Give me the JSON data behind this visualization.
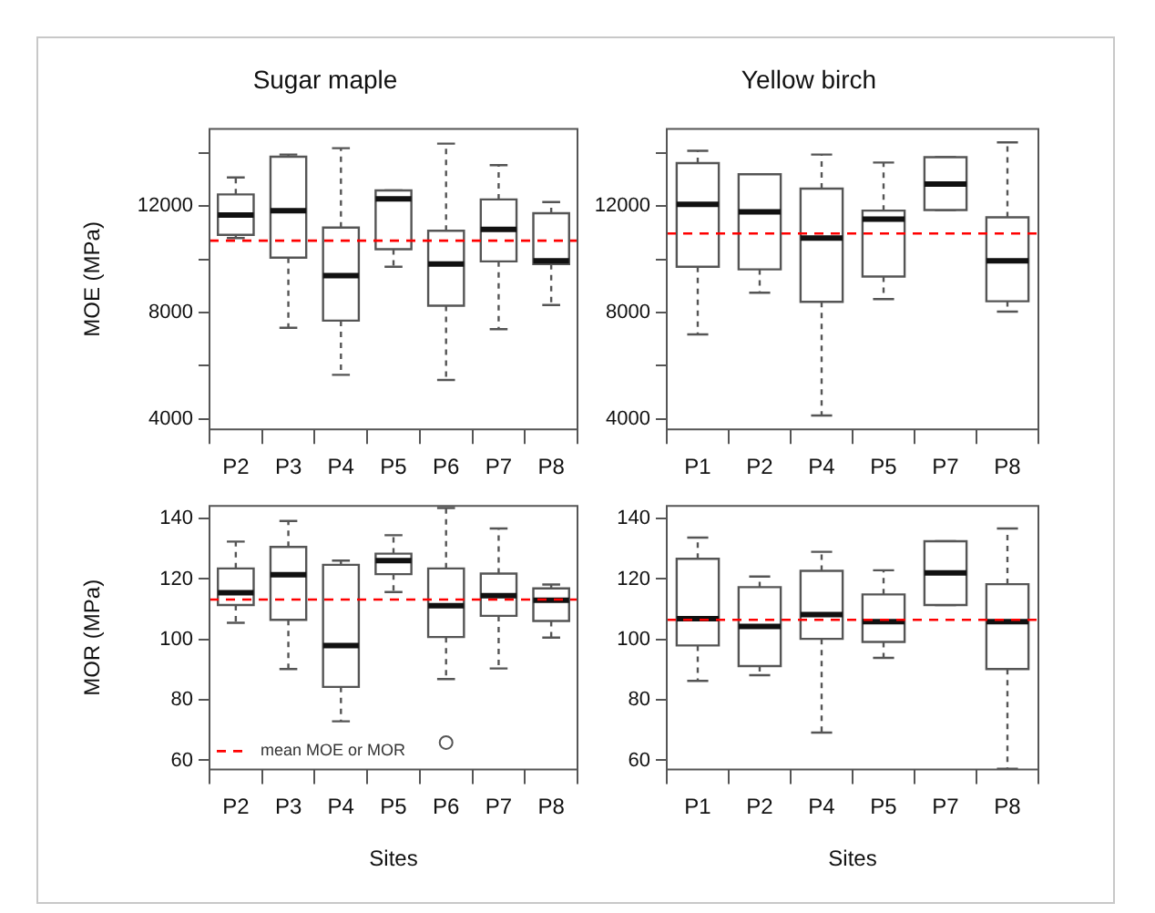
{
  "chart_data": [
    {
      "type": "box",
      "title": "Sugar maple",
      "ylabel": "MOE (MPa)",
      "categories": [
        "P2",
        "P3",
        "P4",
        "P5",
        "P6",
        "P7",
        "P8"
      ],
      "boxes": [
        {
          "low": 10800,
          "q1": 10920,
          "median": 11660,
          "q3": 12440,
          "high": 13080
        },
        {
          "low": 7420,
          "q1": 10060,
          "median": 11830,
          "q3": 13860,
          "high": 13940
        },
        {
          "low": 5650,
          "q1": 7690,
          "median": 9380,
          "q3": 11190,
          "high": 14180
        },
        {
          "low": 9720,
          "q1": 10380,
          "median": 12270,
          "q3": 12590,
          "high": 12590
        },
        {
          "low": 5460,
          "q1": 8250,
          "median": 9820,
          "q3": 11070,
          "high": 14350
        },
        {
          "low": 7370,
          "q1": 9920,
          "median": 11120,
          "q3": 12250,
          "high": 13540
        },
        {
          "low": 8280,
          "q1": 9820,
          "median": 9940,
          "q3": 11730,
          "high": 12150
        }
      ],
      "ylim": [
        3600,
        14900
      ],
      "yticks": [
        4000,
        {
          "value": 6000,
          "label": null
        },
        8000,
        {
          "value": 10000,
          "label": null
        },
        12000,
        {
          "value": 14000,
          "label": null
        }
      ],
      "ref_lines": [
        {
          "axis": "y",
          "value": 10700,
          "color": "#ff0000",
          "line_style": "dashed"
        }
      ]
    },
    {
      "type": "box",
      "title": "Yellow birch",
      "categories": [
        "P1",
        "P2",
        "P4",
        "P5",
        "P7",
        "P8"
      ],
      "boxes": [
        {
          "low": 7170,
          "q1": 9720,
          "median": 12070,
          "q3": 13620,
          "high": 14080
        },
        {
          "low": 8740,
          "q1": 9620,
          "median": 11780,
          "q3": 13200,
          "high": 13200
        },
        {
          "low": 4120,
          "q1": 8400,
          "median": 10800,
          "q3": 12660,
          "high": 13940
        },
        {
          "low": 8500,
          "q1": 9350,
          "median": 11510,
          "q3": 11830,
          "high": 13640
        },
        {
          "low": 11850,
          "q1": 11850,
          "median": 12830,
          "q3": 13840,
          "high": 13840
        },
        {
          "low": 8030,
          "q1": 8420,
          "median": 9940,
          "q3": 11580,
          "high": 14400
        }
      ],
      "ylim": [
        3600,
        14900
      ],
      "yticks": [
        4000,
        {
          "value": 6000,
          "label": null
        },
        8000,
        {
          "value": 10000,
          "label": null
        },
        12000,
        {
          "value": 14000,
          "label": null
        }
      ],
      "ref_lines": [
        {
          "axis": "y",
          "value": 10970,
          "color": "#ff0000",
          "line_style": "dashed"
        }
      ]
    },
    {
      "type": "box",
      "xlabel": "Sites",
      "ylabel": "MOR (MPa)",
      "categories": [
        "P2",
        "P3",
        "P4",
        "P5",
        "P6",
        "P7",
        "P8"
      ],
      "boxes": [
        {
          "low": 105.5,
          "q1": 111.4,
          "median": 115.5,
          "q3": 123.5,
          "high": 132.4
        },
        {
          "low": 90.2,
          "q1": 106.5,
          "median": 121.4,
          "q3": 130.6,
          "high": 139.2
        },
        {
          "low": 72.9,
          "q1": 84.3,
          "median": 98.0,
          "q3": 124.7,
          "high": 126.1
        },
        {
          "low": 115.7,
          "q1": 121.6,
          "median": 126.1,
          "q3": 128.4,
          "high": 134.5
        },
        {
          "low": 86.9,
          "q1": 100.8,
          "median": 111.2,
          "q3": 123.5,
          "high": 143.5,
          "outliers": [
            65.9
          ]
        },
        {
          "low": 90.4,
          "q1": 107.8,
          "median": 114.5,
          "q3": 121.8,
          "high": 136.7
        },
        {
          "low": 100.6,
          "q1": 106.1,
          "median": 113.0,
          "q3": 116.9,
          "high": 118.2
        }
      ],
      "ylim": [
        57,
        144.2
      ],
      "yticks": [
        60,
        80,
        100,
        120,
        140
      ],
      "ref_lines": [
        {
          "axis": "y",
          "value": 113.2,
          "label": "mean MOE or MOR",
          "color": "#ff0000",
          "line_style": "dashed"
        }
      ],
      "legend": "bottom left"
    },
    {
      "type": "box",
      "xlabel": "Sites",
      "categories": [
        "P1",
        "P2",
        "P4",
        "P5",
        "P7",
        "P8"
      ],
      "boxes": [
        {
          "low": 86.3,
          "q1": 98.0,
          "median": 106.9,
          "q3": 126.7,
          "high": 133.7
        },
        {
          "low": 88.2,
          "q1": 91.2,
          "median": 104.3,
          "q3": 117.3,
          "high": 120.8
        },
        {
          "low": 69.2,
          "q1": 100.2,
          "median": 108.2,
          "q3": 122.7,
          "high": 129.0
        },
        {
          "low": 93.9,
          "q1": 99.2,
          "median": 105.9,
          "q3": 114.9,
          "high": 122.9
        },
        {
          "low": 111.4,
          "q1": 111.4,
          "median": 122.0,
          "q3": 132.5,
          "high": 132.5
        },
        {
          "low": 57.2,
          "q1": 90.2,
          "median": 105.9,
          "q3": 118.3,
          "high": 136.7
        }
      ],
      "ylim": [
        57,
        144.2
      ],
      "yticks": [
        60,
        80,
        100,
        120,
        140
      ],
      "ref_lines": [
        {
          "axis": "y",
          "value": 106.5,
          "color": "#ff0000",
          "line_style": "dashed"
        }
      ]
    }
  ]
}
